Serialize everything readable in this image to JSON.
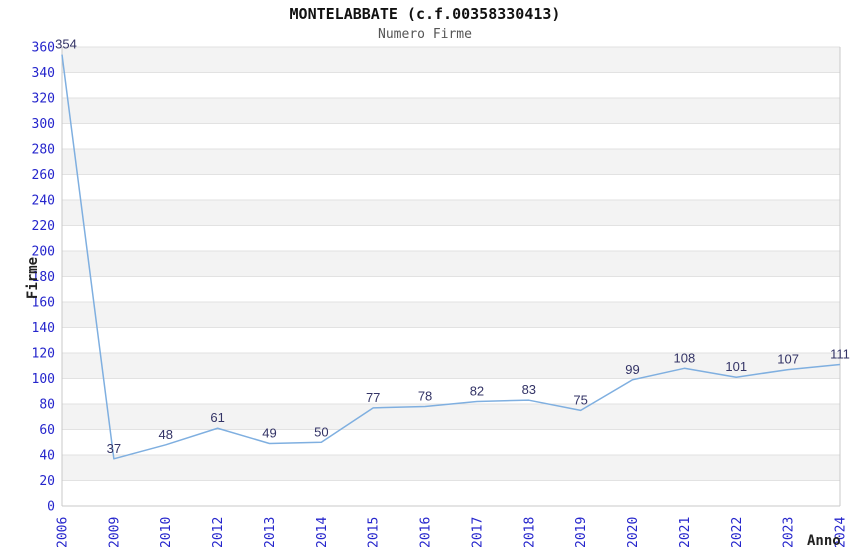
{
  "title": "MONTELABBATE (c.f.00358330413)",
  "subtitle": "Numero Firme",
  "chart_data": {
    "type": "line",
    "categories": [
      "2006",
      "2009",
      "2010",
      "2012",
      "2013",
      "2014",
      "2015",
      "2016",
      "2017",
      "2018",
      "2019",
      "2020",
      "2021",
      "2022",
      "2023",
      "2024"
    ],
    "values": [
      354,
      37,
      48,
      61,
      49,
      50,
      77,
      78,
      82,
      83,
      75,
      99,
      108,
      101,
      107,
      111
    ],
    "series_name": "Numero Firme",
    "xlabel": "Anno",
    "ylabel": "Firme",
    "ylim": [
      0,
      360
    ],
    "ytick_step": 20,
    "grid": "horizontal-bands",
    "legend": "none",
    "colors": {
      "line": "#7FAFE0",
      "point_label": "#333366",
      "tick_label": "#2525CC",
      "band": "#F3F3F3",
      "gridline": "#E2E2E2",
      "axis": "#C8C8C8",
      "title": "#111111",
      "subtitle": "#555555"
    }
  }
}
